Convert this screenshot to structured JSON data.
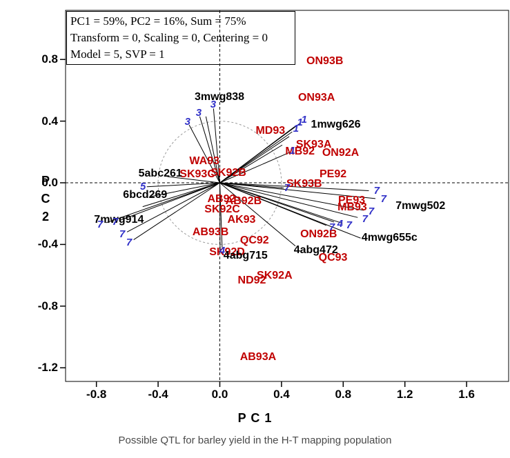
{
  "stats_box": {
    "line1": "PC1 = 59%, PC2 = 16%, Sum = 75%",
    "line2": "Transform = 0, Scaling = 0, Centering = 0",
    "line3": "Model = 5, SVP = 1"
  },
  "caption": "Possible QTL for barley yield in the H-T mapping population",
  "colors": {
    "environment_label": "#c00000",
    "marker_label": "#000000",
    "linkage_group_digit": "#3232c8",
    "vector_line": "#000000",
    "guide_circle": "#999999"
  },
  "chart_data": {
    "type": "scatter",
    "title": "Possible QTL for barley yield in the H-T mapping population",
    "xlabel": "P C 1",
    "ylabel": "P C 2",
    "xlim": [
      -1.0,
      1.87
    ],
    "ylim": [
      -1.34,
      1.12
    ],
    "grid": false,
    "origin_crosshair": true,
    "guide_circle_radius": 0.4,
    "x_ticks": [
      "-0.8",
      "-0.4",
      "0.0",
      "0.4",
      "0.8",
      "1.2",
      "1.6"
    ],
    "y_ticks": [
      "0.8",
      "0.4",
      "0.0",
      "-0.4",
      "-0.8",
      "-1.2"
    ],
    "stats_lines": [
      "PC1 = 59%, PC2 = 16%, Sum = 75%",
      "Transform = 0, Scaling = 0, Centering = 0",
      "Model = 5, SVP = 1"
    ],
    "environments": [
      {
        "label": "ON93B",
        "x": 0.681,
        "y": 0.789
      },
      {
        "label": "ON93A",
        "x": 0.627,
        "y": 0.552
      },
      {
        "label": "MD93",
        "x": 0.328,
        "y": 0.336
      },
      {
        "label": "SK93A",
        "x": 0.609,
        "y": 0.247
      },
      {
        "label": "MB92",
        "x": 0.52,
        "y": 0.202
      },
      {
        "label": "ON92A",
        "x": 0.783,
        "y": 0.193
      },
      {
        "label": "PE92",
        "x": 0.734,
        "y": 0.054
      },
      {
        "label": "SK93B",
        "x": 0.547,
        "y": -0.009
      },
      {
        "label": "PE93",
        "x": 0.855,
        "y": -0.117
      },
      {
        "label": "MB93",
        "x": 0.859,
        "y": -0.161
      },
      {
        "label": "WA93",
        "x": -0.1,
        "y": 0.139
      },
      {
        "label": "SK93C",
        "x": -0.145,
        "y": 0.054
      },
      {
        "label": "SK92B",
        "x": 0.056,
        "y": 0.063
      },
      {
        "label": "AB92",
        "x": 0.011,
        "y": -0.108
      },
      {
        "label": "AB92B",
        "x": 0.154,
        "y": -0.121
      },
      {
        "label": "SK92C",
        "x": 0.016,
        "y": -0.175
      },
      {
        "label": "AK93",
        "x": 0.141,
        "y": -0.242
      },
      {
        "label": "AB93B",
        "x": -0.06,
        "y": -0.323
      },
      {
        "label": "QC92",
        "x": 0.225,
        "y": -0.377
      },
      {
        "label": "SK92D",
        "x": 0.047,
        "y": -0.453
      },
      {
        "label": "ON92B",
        "x": 0.641,
        "y": -0.336
      },
      {
        "label": "QC93",
        "x": 0.734,
        "y": -0.489
      },
      {
        "label": "ND92",
        "x": 0.208,
        "y": -0.637
      },
      {
        "label": "SK92A",
        "x": 0.355,
        "y": -0.605
      },
      {
        "label": "AB93A",
        "x": 0.248,
        "y": -1.13
      }
    ],
    "markers": [
      {
        "label": "3mwg838",
        "x": -0.002,
        "y": 0.556
      },
      {
        "label": "1mwg626",
        "x": 0.752,
        "y": 0.377
      },
      {
        "label": "5abc261",
        "x": -0.386,
        "y": 0.058
      },
      {
        "label": "6bcd269",
        "x": -0.484,
        "y": -0.081
      },
      {
        "label": "7mwg914",
        "x": -0.654,
        "y": -0.242
      },
      {
        "label": "7mwg502",
        "x": 1.301,
        "y": -0.152
      },
      {
        "label": "4mwg655c",
        "x": 1.1,
        "y": -0.359
      },
      {
        "label": "4abg472",
        "x": 0.623,
        "y": -0.439
      },
      {
        "label": "4abg715",
        "x": 0.167,
        "y": -0.475
      }
    ],
    "vectors": [
      {
        "x": -0.209,
        "y": 0.395,
        "lg": "3"
      },
      {
        "x": -0.137,
        "y": 0.453,
        "lg": "3"
      },
      {
        "x": -0.043,
        "y": 0.507,
        "lg": "3"
      },
      {
        "x": -0.09,
        "y": 0.43,
        "lg": ""
      },
      {
        "x": 0.494,
        "y": 0.348,
        "lg": "1"
      },
      {
        "x": 0.52,
        "y": 0.39,
        "lg": "1"
      },
      {
        "x": 0.547,
        "y": 0.406,
        "lg": "1"
      },
      {
        "x": 0.471,
        "y": 0.205,
        "lg": "1"
      },
      {
        "x": 0.45,
        "y": 0.3,
        "lg": ""
      },
      {
        "x": 0.405,
        "y": 0.245,
        "lg": ""
      },
      {
        "x": -0.498,
        "y": -0.027,
        "lg": "5"
      },
      {
        "x": -0.34,
        "y": 0.04,
        "lg": ""
      },
      {
        "x": -0.45,
        "y": -0.09,
        "lg": ""
      },
      {
        "x": -0.5,
        "y": -0.155,
        "lg": ""
      },
      {
        "x": -0.776,
        "y": -0.273,
        "lg": "7"
      },
      {
        "x": -0.678,
        "y": -0.255,
        "lg": "7"
      },
      {
        "x": -0.633,
        "y": -0.336,
        "lg": "7"
      },
      {
        "x": -0.588,
        "y": -0.389,
        "lg": "7"
      },
      {
        "x": 1.017,
        "y": -0.054,
        "lg": "7"
      },
      {
        "x": 1.062,
        "y": -0.108,
        "lg": "7"
      },
      {
        "x": 0.982,
        "y": -0.188,
        "lg": "7"
      },
      {
        "x": 0.941,
        "y": -0.237,
        "lg": "7"
      },
      {
        "x": 0.838,
        "y": -0.277,
        "lg": "7"
      },
      {
        "x": 0.727,
        "y": -0.291,
        "lg": "7"
      },
      {
        "x": 0.436,
        "y": -0.036,
        "lg": "7"
      },
      {
        "x": 0.78,
        "y": -0.268,
        "lg": "4"
      },
      {
        "x": 0.016,
        "y": -0.442,
        "lg": "4"
      },
      {
        "x": 0.002,
        "y": -0.44,
        "lg": ""
      },
      {
        "x": 0.49,
        "y": -0.41,
        "lg": ""
      },
      {
        "x": 0.913,
        "y": -0.359,
        "lg": ""
      }
    ]
  }
}
